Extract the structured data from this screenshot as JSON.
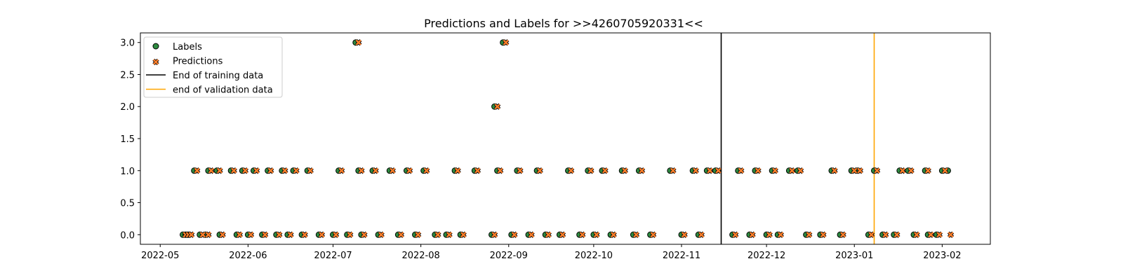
{
  "chart_data": {
    "type": "scatter",
    "title": "Predictions and Labels for >>4260705920331<<",
    "xlabel": "",
    "ylabel": "",
    "xlim": [
      "2022-04-24",
      "2023-02-18"
    ],
    "ylim": [
      -0.15,
      3.15
    ],
    "grid": false,
    "legend_position": "upper left",
    "x_ticks": [
      "2022-05",
      "2022-06",
      "2022-07",
      "2022-08",
      "2022-09",
      "2022-10",
      "2022-11",
      "2022-12",
      "2023-01",
      "2023-02"
    ],
    "y_ticks": [
      "0.0",
      "0.5",
      "1.0",
      "1.5",
      "2.0",
      "2.5",
      "3.0"
    ],
    "series": [
      {
        "name": "Labels",
        "marker": "circle",
        "color": "#2e8b40",
        "edge_color": "#000000",
        "points": [
          [
            "2022-05-09",
            0
          ],
          [
            "2022-05-10",
            0
          ],
          [
            "2022-05-11",
            0
          ],
          [
            "2022-05-13",
            1
          ],
          [
            "2022-05-15",
            0
          ],
          [
            "2022-05-17",
            0
          ],
          [
            "2022-05-18",
            1
          ],
          [
            "2022-05-21",
            1
          ],
          [
            "2022-05-22",
            0
          ],
          [
            "2022-05-26",
            1
          ],
          [
            "2022-05-28",
            0
          ],
          [
            "2022-05-30",
            1
          ],
          [
            "2022-06-01",
            0
          ],
          [
            "2022-06-03",
            1
          ],
          [
            "2022-06-06",
            0
          ],
          [
            "2022-06-08",
            1
          ],
          [
            "2022-06-11",
            0
          ],
          [
            "2022-06-13",
            1
          ],
          [
            "2022-06-15",
            0
          ],
          [
            "2022-06-17",
            1
          ],
          [
            "2022-06-20",
            0
          ],
          [
            "2022-06-22",
            1
          ],
          [
            "2022-06-26",
            0
          ],
          [
            "2022-07-01",
            0
          ],
          [
            "2022-07-03",
            1
          ],
          [
            "2022-07-06",
            0
          ],
          [
            "2022-07-09",
            3
          ],
          [
            "2022-07-10",
            1
          ],
          [
            "2022-07-11",
            0
          ],
          [
            "2022-07-15",
            1
          ],
          [
            "2022-07-17",
            0
          ],
          [
            "2022-07-21",
            1
          ],
          [
            "2022-07-24",
            0
          ],
          [
            "2022-07-27",
            1
          ],
          [
            "2022-07-30",
            0
          ],
          [
            "2022-08-02",
            1
          ],
          [
            "2022-08-06",
            0
          ],
          [
            "2022-08-10",
            0
          ],
          [
            "2022-08-13",
            1
          ],
          [
            "2022-08-15",
            0
          ],
          [
            "2022-08-20",
            1
          ],
          [
            "2022-08-26",
            0
          ],
          [
            "2022-08-27",
            2
          ],
          [
            "2022-08-28",
            1
          ],
          [
            "2022-08-30",
            3
          ],
          [
            "2022-09-02",
            0
          ],
          [
            "2022-09-04",
            1
          ],
          [
            "2022-09-08",
            0
          ],
          [
            "2022-09-11",
            1
          ],
          [
            "2022-09-14",
            0
          ],
          [
            "2022-09-19",
            0
          ],
          [
            "2022-09-22",
            1
          ],
          [
            "2022-09-26",
            0
          ],
          [
            "2022-09-29",
            1
          ],
          [
            "2022-10-01",
            0
          ],
          [
            "2022-10-04",
            1
          ],
          [
            "2022-10-07",
            0
          ],
          [
            "2022-10-11",
            1
          ],
          [
            "2022-10-15",
            0
          ],
          [
            "2022-10-17",
            1
          ],
          [
            "2022-10-21",
            0
          ],
          [
            "2022-10-28",
            1
          ],
          [
            "2022-11-01",
            0
          ],
          [
            "2022-11-05",
            1
          ],
          [
            "2022-11-07",
            0
          ],
          [
            "2022-11-10",
            1
          ],
          [
            "2022-11-13",
            1
          ],
          [
            "2022-11-19",
            0
          ],
          [
            "2022-11-21",
            1
          ],
          [
            "2022-11-25",
            0
          ],
          [
            "2022-11-27",
            1
          ],
          [
            "2022-12-01",
            0
          ],
          [
            "2022-12-03",
            1
          ],
          [
            "2022-12-05",
            0
          ],
          [
            "2022-12-09",
            1
          ],
          [
            "2022-12-12",
            1
          ],
          [
            "2022-12-15",
            0
          ],
          [
            "2022-12-20",
            0
          ],
          [
            "2022-12-24",
            1
          ],
          [
            "2022-12-27",
            0
          ],
          [
            "2022-12-31",
            1
          ],
          [
            "2023-01-02",
            1
          ],
          [
            "2023-01-06",
            0
          ],
          [
            "2023-01-08",
            1
          ],
          [
            "2023-01-11",
            0
          ],
          [
            "2023-01-15",
            0
          ],
          [
            "2023-01-17",
            1
          ],
          [
            "2023-01-20",
            1
          ],
          [
            "2023-01-22",
            0
          ],
          [
            "2023-01-26",
            1
          ],
          [
            "2023-01-27",
            0
          ],
          [
            "2023-01-30",
            0
          ],
          [
            "2023-02-01",
            1
          ],
          [
            "2023-02-03",
            1
          ]
        ]
      },
      {
        "name": "Predictions",
        "marker": "x",
        "color": "#ff7f2a",
        "edge_color": "#000000",
        "points": [
          [
            "2022-05-10",
            0
          ],
          [
            "2022-05-11",
            0
          ],
          [
            "2022-05-12",
            0
          ],
          [
            "2022-05-14",
            1
          ],
          [
            "2022-05-16",
            0
          ],
          [
            "2022-05-18",
            0
          ],
          [
            "2022-05-19",
            1
          ],
          [
            "2022-05-22",
            1
          ],
          [
            "2022-05-23",
            0
          ],
          [
            "2022-05-27",
            1
          ],
          [
            "2022-05-29",
            0
          ],
          [
            "2022-05-31",
            1
          ],
          [
            "2022-06-02",
            0
          ],
          [
            "2022-06-04",
            1
          ],
          [
            "2022-06-07",
            0
          ],
          [
            "2022-06-09",
            1
          ],
          [
            "2022-06-12",
            0
          ],
          [
            "2022-06-14",
            1
          ],
          [
            "2022-06-16",
            0
          ],
          [
            "2022-06-18",
            1
          ],
          [
            "2022-06-21",
            0
          ],
          [
            "2022-06-23",
            1
          ],
          [
            "2022-06-27",
            0
          ],
          [
            "2022-07-02",
            0
          ],
          [
            "2022-07-04",
            1
          ],
          [
            "2022-07-07",
            0
          ],
          [
            "2022-07-10",
            3
          ],
          [
            "2022-07-11",
            1
          ],
          [
            "2022-07-12",
            0
          ],
          [
            "2022-07-16",
            1
          ],
          [
            "2022-07-18",
            0
          ],
          [
            "2022-07-22",
            1
          ],
          [
            "2022-07-25",
            0
          ],
          [
            "2022-07-28",
            1
          ],
          [
            "2022-07-31",
            0
          ],
          [
            "2022-08-03",
            1
          ],
          [
            "2022-08-07",
            0
          ],
          [
            "2022-08-11",
            0
          ],
          [
            "2022-08-14",
            1
          ],
          [
            "2022-08-16",
            0
          ],
          [
            "2022-08-21",
            1
          ],
          [
            "2022-08-27",
            0
          ],
          [
            "2022-08-28",
            2
          ],
          [
            "2022-08-29",
            1
          ],
          [
            "2022-08-31",
            3
          ],
          [
            "2022-09-03",
            0
          ],
          [
            "2022-09-05",
            1
          ],
          [
            "2022-09-09",
            0
          ],
          [
            "2022-09-12",
            1
          ],
          [
            "2022-09-15",
            0
          ],
          [
            "2022-09-20",
            0
          ],
          [
            "2022-09-23",
            1
          ],
          [
            "2022-09-27",
            0
          ],
          [
            "2022-09-30",
            1
          ],
          [
            "2022-10-02",
            0
          ],
          [
            "2022-10-05",
            1
          ],
          [
            "2022-10-08",
            0
          ],
          [
            "2022-10-12",
            1
          ],
          [
            "2022-10-16",
            0
          ],
          [
            "2022-10-18",
            1
          ],
          [
            "2022-10-22",
            0
          ],
          [
            "2022-10-29",
            1
          ],
          [
            "2022-11-02",
            0
          ],
          [
            "2022-11-06",
            1
          ],
          [
            "2022-11-08",
            0
          ],
          [
            "2022-11-11",
            1
          ],
          [
            "2022-11-14",
            1
          ],
          [
            "2022-11-20",
            0
          ],
          [
            "2022-11-22",
            1
          ],
          [
            "2022-11-26",
            0
          ],
          [
            "2022-11-28",
            1
          ],
          [
            "2022-12-02",
            0
          ],
          [
            "2022-12-04",
            1
          ],
          [
            "2022-12-06",
            0
          ],
          [
            "2022-12-10",
            1
          ],
          [
            "2022-12-13",
            1
          ],
          [
            "2022-12-16",
            0
          ],
          [
            "2022-12-21",
            0
          ],
          [
            "2022-12-25",
            1
          ],
          [
            "2022-12-28",
            0
          ],
          [
            "2023-01-01",
            1
          ],
          [
            "2023-01-03",
            1
          ],
          [
            "2023-01-07",
            0
          ],
          [
            "2023-01-09",
            1
          ],
          [
            "2023-01-12",
            0
          ],
          [
            "2023-01-16",
            0
          ],
          [
            "2023-01-18",
            1
          ],
          [
            "2023-01-21",
            1
          ],
          [
            "2023-01-23",
            0
          ],
          [
            "2023-01-27",
            1
          ],
          [
            "2023-01-28",
            0
          ],
          [
            "2023-01-31",
            0
          ],
          [
            "2023-02-02",
            1
          ],
          [
            "2023-02-04",
            0
          ]
        ]
      }
    ],
    "vlines": [
      {
        "name": "End of training data",
        "x": "2022-11-15",
        "color": "#000000"
      },
      {
        "name": "end of validation data",
        "x": "2023-01-08",
        "color": "#ffa500"
      }
    ],
    "legend": [
      "Labels",
      "Predictions",
      "End of training data",
      "end of validation data"
    ]
  }
}
